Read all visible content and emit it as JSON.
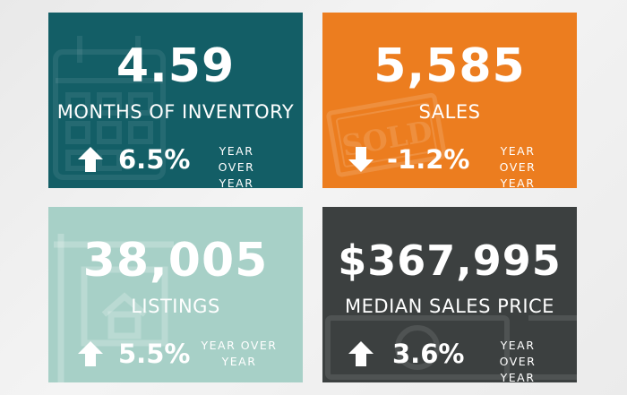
{
  "cards": [
    {
      "value": "4.59",
      "label": "MONTHS OF INVENTORY",
      "change": "6.5%",
      "direction": "up",
      "yoy_line1": "YEAR OVER",
      "yoy_line2": "YEAR",
      "color": "#135e66",
      "watermark_icon": "calendar-icon"
    },
    {
      "value": "5,585",
      "label": "SALES",
      "change": "-1.2%",
      "direction": "down",
      "yoy_line1": "YEAR OVER",
      "yoy_line2": "YEAR",
      "color": "#ec7d1f",
      "watermark_icon": "sold-stamp-icon",
      "watermark_text": "SOLD"
    },
    {
      "value": "38,005",
      "label": "LISTINGS",
      "change": "5.5%",
      "direction": "up",
      "yoy_line1": "YEAR OVER",
      "yoy_line2": "YEAR",
      "color": "#a7d0c7",
      "watermark_icon": "house-sign-icon"
    },
    {
      "value": "$367,995",
      "label": "MEDIAN SALES PRICE",
      "change": "3.6%",
      "direction": "up",
      "yoy_line1": "YEAR OVER",
      "yoy_line2": "YEAR",
      "color": "#3c4040",
      "watermark_icon": "dollar-bill-icon"
    }
  ]
}
